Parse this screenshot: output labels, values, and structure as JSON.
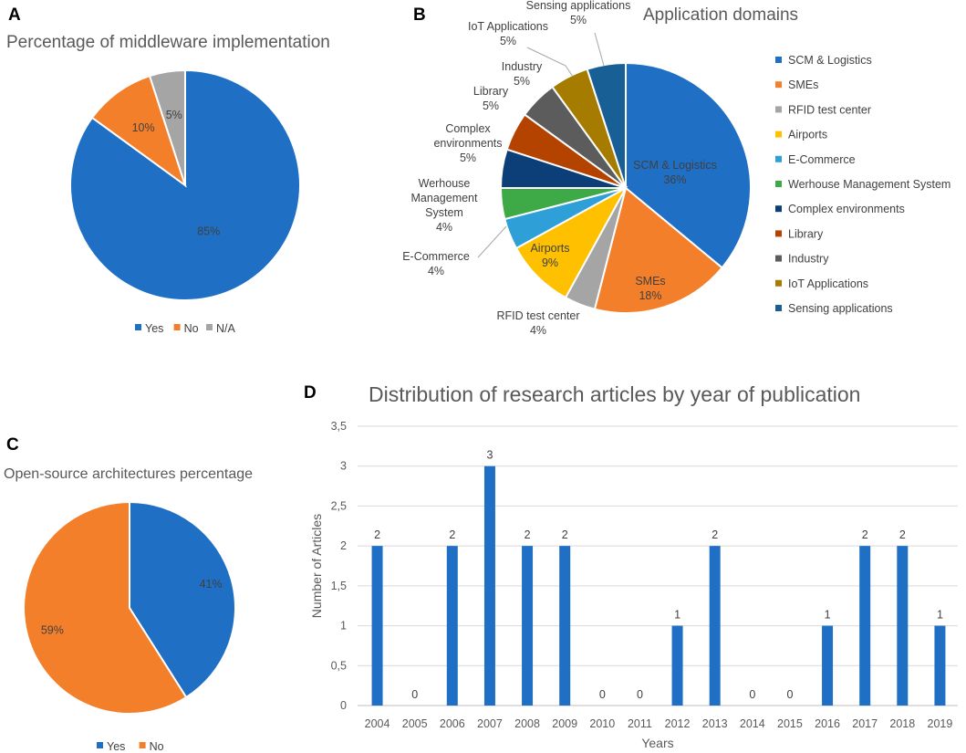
{
  "panels": {
    "a": "A",
    "b": "B",
    "c": "C",
    "d": "D"
  },
  "chart_data": [
    {
      "id": "A",
      "type": "pie",
      "title": "Percentage of middleware implementation",
      "categories": [
        "Yes",
        "No",
        "N/A"
      ],
      "values": [
        85,
        10,
        5
      ],
      "labels": [
        "85%",
        "10%",
        "5%"
      ],
      "colors": [
        "#1f6fc5",
        "#f47f2a",
        "#a5a5a5"
      ],
      "legend": "bottom"
    },
    {
      "id": "B",
      "type": "pie",
      "title": "Application domains",
      "categories": [
        "SCM & Logistics",
        "SMEs",
        "RFID test center",
        "Airports",
        "E-Commerce",
        "Werhouse Management System",
        "Complex environments",
        "Library",
        "Industry",
        "IoT Applications",
        "Sensing applications"
      ],
      "values": [
        36,
        18,
        4,
        9,
        4,
        4,
        5,
        5,
        5,
        5,
        5
      ],
      "labels": [
        "36%",
        "18%",
        "4%",
        "9%",
        "4%",
        "4%",
        "5%",
        "5%",
        "5%",
        "5%",
        "5%"
      ],
      "slice_label_lines": [
        [
          "SCM & Logistics",
          "36%"
        ],
        [
          "SMEs",
          "18%"
        ],
        [
          "RFID test center",
          "4%"
        ],
        [
          "Airports",
          "9%"
        ],
        [
          "E-Commerce",
          "4%"
        ],
        [
          "Werhouse",
          "Management",
          "System",
          "4%"
        ],
        [
          "Complex",
          "environments",
          "5%"
        ],
        [
          "Library",
          "5%"
        ],
        [
          "Industry",
          "5%"
        ],
        [
          "IoT Applications",
          "5%"
        ],
        [
          "Sensing applications",
          "5%"
        ]
      ],
      "colors": [
        "#1f6fc5",
        "#f47f2a",
        "#a5a5a5",
        "#ffc000",
        "#2f9fd8",
        "#3eaa47",
        "#0c3f78",
        "#b54300",
        "#5c5c5c",
        "#a67c00",
        "#175f94"
      ],
      "legend": "right"
    },
    {
      "id": "C",
      "type": "pie",
      "title": "Open-source architectures percentage",
      "categories": [
        "Yes",
        "No"
      ],
      "values": [
        41,
        59
      ],
      "labels": [
        "41%",
        "59%"
      ],
      "colors": [
        "#1f6fc5",
        "#f47f2a"
      ],
      "legend": "bottom"
    },
    {
      "id": "D",
      "type": "bar",
      "title": "Distribution of research articles by year of publication",
      "xlabel": "Years",
      "ylabel": "Number of Articles",
      "categories": [
        "2004",
        "2005",
        "2006",
        "2007",
        "2008",
        "2009",
        "2010",
        "2011",
        "2012",
        "2013",
        "2014",
        "2015",
        "2016",
        "2017",
        "2018",
        "2019"
      ],
      "values": [
        2,
        0,
        2,
        3,
        2,
        2,
        0,
        0,
        1,
        2,
        0,
        0,
        1,
        2,
        2,
        1
      ],
      "ylim": [
        0,
        3.5
      ],
      "yticks": [
        "0",
        "0,5",
        "1",
        "1,5",
        "2",
        "2,5",
        "3",
        "3,5"
      ],
      "grid": true,
      "color": "#1f6fc5"
    }
  ]
}
